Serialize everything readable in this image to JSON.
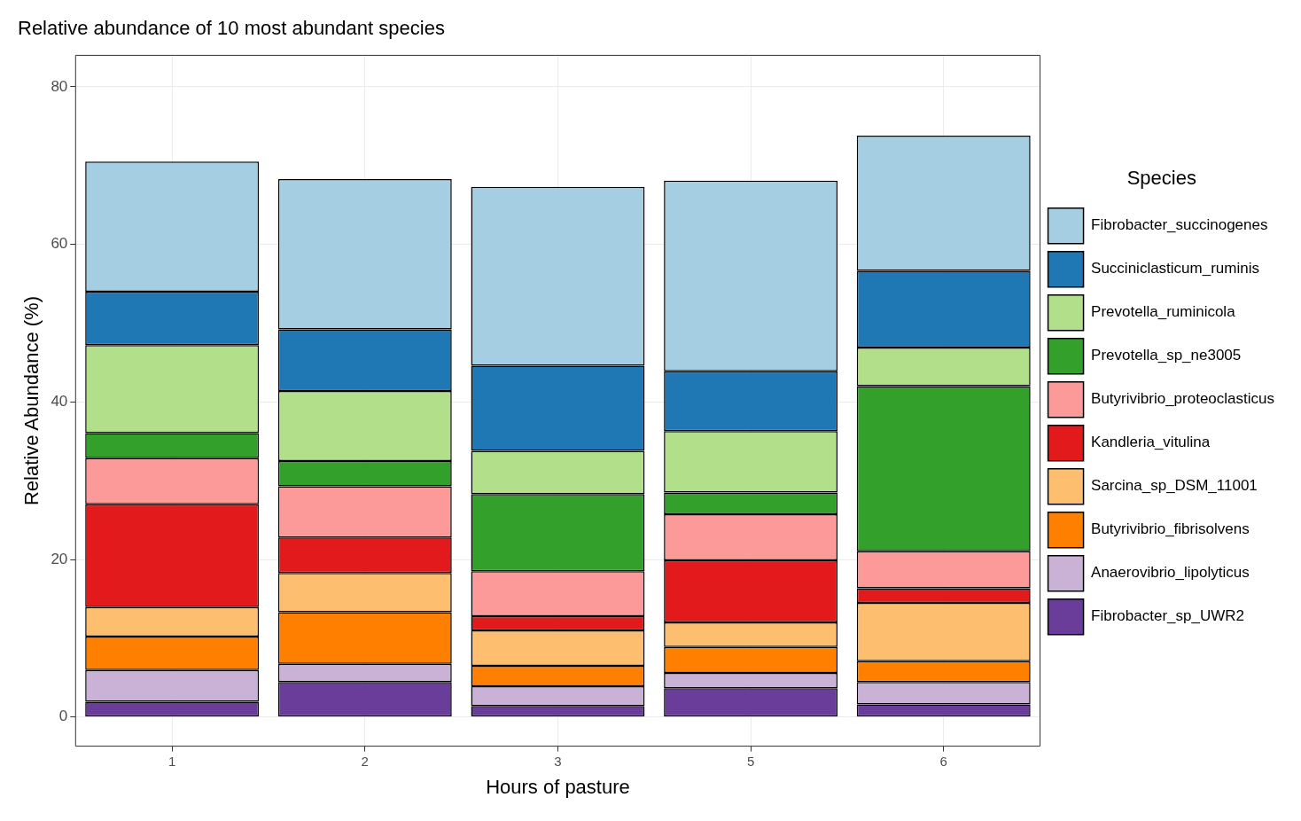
{
  "chart_data": {
    "type": "bar",
    "title": "Relative abundance of 10 most abundant species",
    "xlabel": "Hours of pasture",
    "ylabel": "Relative Abundance (%)",
    "legend_title": "Species",
    "categories": [
      "1",
      "2",
      "3",
      "5",
      "6"
    ],
    "stacked": true,
    "ylim": [
      -3.7,
      84
    ],
    "yticks": [
      0,
      20,
      40,
      60,
      80
    ],
    "grid": true,
    "legend": "right",
    "series": [
      {
        "name": "Fibrobacter_sp_UWR2",
        "color": "#6a3d9a",
        "values": [
          1.95,
          4.45,
          1.4,
          3.65,
          1.6
        ]
      },
      {
        "name": "Anaerovibrio_lipolyticus",
        "color": "#cab2d6",
        "values": [
          4.0,
          2.3,
          2.5,
          1.95,
          2.85
        ]
      },
      {
        "name": "Butyrivibrio_fibrisolvens",
        "color": "#ff7f00",
        "values": [
          4.25,
          6.55,
          2.6,
          3.3,
          2.65
        ]
      },
      {
        "name": "Sarcina_sp_DSM_11001",
        "color": "#fdbf6f",
        "values": [
          3.75,
          5.0,
          4.5,
          3.1,
          7.4
        ]
      },
      {
        "name": "Kandleria_vitulina",
        "color": "#e31a1c",
        "values": [
          13.05,
          4.5,
          1.8,
          7.9,
          1.85
        ]
      },
      {
        "name": "Butyrivibrio_proteoclasticus",
        "color": "#fb9a99",
        "values": [
          5.85,
          6.5,
          5.7,
          5.85,
          4.7
        ]
      },
      {
        "name": "Prevotella_sp_ne3005",
        "color": "#33a02c",
        "values": [
          3.2,
          3.2,
          9.8,
          2.75,
          20.95
        ]
      },
      {
        "name": "Prevotella_ruminicola",
        "color": "#b2df8a",
        "values": [
          11.15,
          8.9,
          5.5,
          7.8,
          4.9
        ]
      },
      {
        "name": "Succiniclasticum_ruminis",
        "color": "#1f78b4",
        "values": [
          6.8,
          7.8,
          10.8,
          7.6,
          9.75
        ]
      },
      {
        "name": "Fibrobacter_succinogenes",
        "color": "#a6cee3",
        "values": [
          16.5,
          19.1,
          22.7,
          24.2,
          17.15
        ]
      }
    ]
  }
}
